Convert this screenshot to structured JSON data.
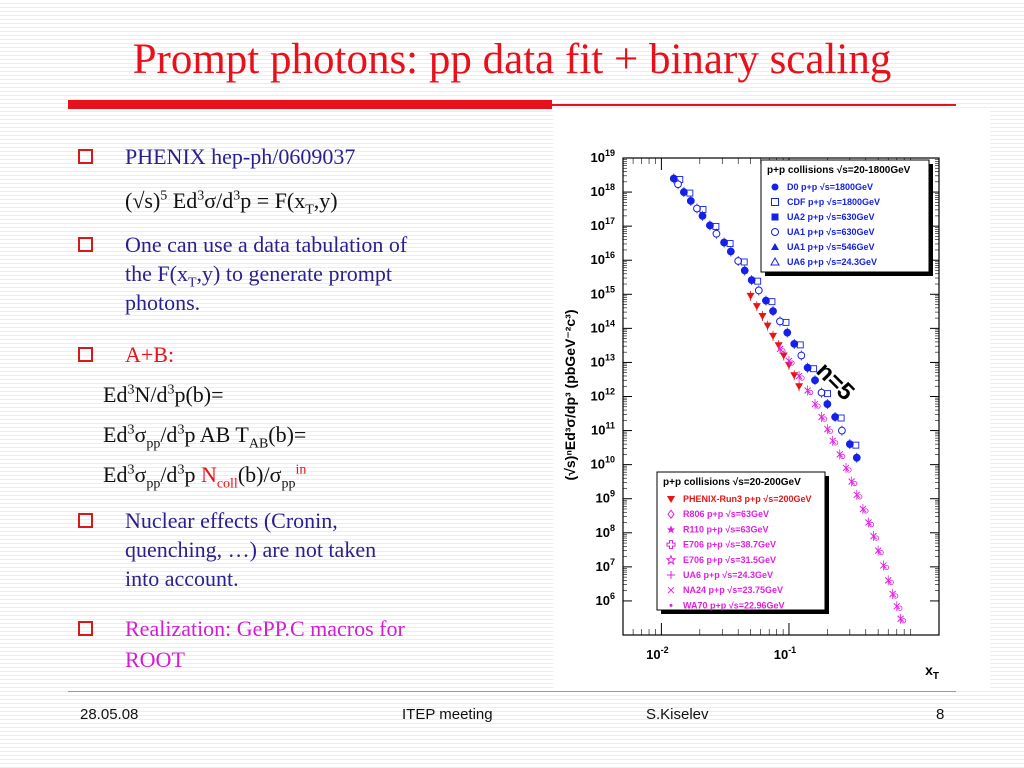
{
  "slide": {
    "title": "Prompt photons: pp data fit + binary scaling"
  },
  "bullets": {
    "b1": "PHENIX hep-ph/0609037",
    "b1_formula": "(√s)5 Ed3σ/d3p = F(xT,y)",
    "b2_line1": "One can use a data tabulation of",
    "b2_line2": "the F(xT,y) to generate prompt",
    "b2_line3": "photons.",
    "b3": "A+B:",
    "f1": "Ed3N/d3p(b)=",
    "f2": "Ed3σpp/d3p AB TAB(b)=",
    "f3": "Ed3σpp/d3p Ncoll(b)/σppin",
    "b4_line1": "Nuclear effects (Cronin,",
    "b4_line2": "quenching, …) are not taken",
    "b4_line3": "into account.",
    "b5_line1": "Realization: GePP.C macros for",
    "b5_line2": "ROOT"
  },
  "footer": {
    "date": "28.05.08",
    "event": "ITEP meeting",
    "author": "S.Kiselev",
    "page": "8"
  },
  "chart_data": {
    "type": "scatter",
    "xlabel": "x_T",
    "ylabel": "(√s)^n Ed^3σ/dp^3 (pbGeV^-2 c^3)",
    "x_scale": "log",
    "y_scale": "log",
    "xlim": [
      0.005,
      1.5
    ],
    "ylim": [
      100000,
      10000000000000000000
    ],
    "x_ticks": [
      "10^-2",
      "10^-1"
    ],
    "y_ticks": [
      "10^6",
      "10^7",
      "10^8",
      "10^9",
      "10^10",
      "10^11",
      "10^12",
      "10^13",
      "10^14",
      "10^15",
      "10^16",
      "10^17",
      "10^18",
      "10^19"
    ],
    "annotation": "n=5",
    "colors": {
      "blue": "#1520e8",
      "red": "#e81414",
      "magenta": "#e020e0"
    },
    "legends": [
      {
        "title": "p+p collisions √s=20-1800GeV",
        "placement": "top-right",
        "entries": [
          {
            "label": "D0 p+p √s=1800GeV",
            "marker": "filled-circle",
            "color": "#1520e8"
          },
          {
            "label": "CDF p+p √s=1800GeV",
            "marker": "open-square",
            "color": "#1520e8"
          },
          {
            "label": "UA2 p+p √s=630GeV",
            "marker": "filled-square",
            "color": "#1520e8"
          },
          {
            "label": "UA1 p+p √s=630GeV",
            "marker": "open-circle",
            "color": "#1520e8"
          },
          {
            "label": "UA1 p+p √s=546GeV",
            "marker": "filled-triangle",
            "color": "#1520e8"
          },
          {
            "label": "UA6 p+p √s=24.3GeV",
            "marker": "open-triangle",
            "color": "#1520e8"
          }
        ]
      },
      {
        "title": "p+p collisions √s=20-200GeV",
        "placement": "bottom-center",
        "entries": [
          {
            "label": "PHENIX-Run3 p+p √s=200GeV",
            "marker": "filled-triangle-down",
            "color": "#e81414"
          },
          {
            "label": "R806 p+p √s=63GeV",
            "marker": "open-diamond",
            "color": "#e020e0"
          },
          {
            "label": "R110 p+p √s=63GeV",
            "marker": "filled-star",
            "color": "#e020e0"
          },
          {
            "label": "E706 p+p √s=38.7GeV",
            "marker": "open-cross",
            "color": "#e020e0"
          },
          {
            "label": "E706 p+p √s=31.5GeV",
            "marker": "open-star",
            "color": "#e020e0"
          },
          {
            "label": "UA6 p+p √s=24.3GeV",
            "marker": "plus",
            "color": "#e020e0"
          },
          {
            "label": "NA24 p+p √s=23.75GeV",
            "marker": "x",
            "color": "#e020e0"
          },
          {
            "label": "WA70 p+p √s=22.96GeV",
            "marker": "dot",
            "color": "#e020e0"
          }
        ]
      }
    ],
    "series": [
      {
        "group": "blue",
        "x": [
          0.0125,
          0.0135,
          0.015,
          0.017,
          0.019,
          0.021,
          0.024,
          0.027,
          0.031,
          0.035,
          0.04,
          0.045,
          0.051,
          0.058,
          0.066,
          0.075,
          0.085,
          0.097,
          0.11,
          0.125,
          0.14,
          0.16,
          0.18,
          0.2,
          0.23,
          0.26,
          0.3,
          0.34
        ],
        "y": [
          2.5e+18,
          1.7e+18,
          1e+18,
          5.5e+17,
          3.3e+17,
          2e+17,
          1.05e+17,
          6e+16,
          3.3e+16,
          1.8e+16,
          9500000000000000.0,
          5000000000000000.0,
          2600000000000000.0,
          1300000000000000.0,
          650000000000000.0,
          320000000000000.0,
          160000000000000.0,
          75000000000000.0,
          35000000000000.0,
          16000000000000.0,
          7000000000000.0,
          3000000000000.0,
          1300000000000.0,
          600000000000.0,
          250000000000.0,
          100000000000.0,
          40000000000.0,
          16000000000.0
        ]
      },
      {
        "group": "red",
        "x": [
          0.05,
          0.056,
          0.062,
          0.068,
          0.075,
          0.083,
          0.091,
          0.1,
          0.11,
          0.12
        ],
        "y": [
          900000000000000.0,
          450000000000000.0,
          230000000000000.0,
          120000000000000.0,
          60000000000000.0,
          32000000000000.0,
          16000000000000.0,
          8500000000000.0,
          4200000000000.0,
          2000000000000.0
        ]
      },
      {
        "group": "magenta",
        "x": [
          0.085,
          0.1,
          0.12,
          0.14,
          0.16,
          0.18,
          0.2,
          0.22,
          0.25,
          0.28,
          0.31,
          0.34,
          0.38,
          0.42,
          0.46,
          0.5,
          0.55,
          0.6,
          0.65,
          0.7,
          0.75
        ],
        "y": [
          25000000000000.0,
          11000000000000.0,
          4000000000000.0,
          1500000000000.0,
          600000000000.0,
          250000000000.0,
          110000000000.0,
          50000000000.0,
          20000000000.0,
          8000000000.0,
          3200000000.0,
          1300000000.0,
          500000000.0,
          200000000.0,
          80000000.0,
          30000000.0,
          11000000.0,
          4000000.0,
          1600000.0,
          700000.0,
          300000.0
        ]
      }
    ]
  }
}
